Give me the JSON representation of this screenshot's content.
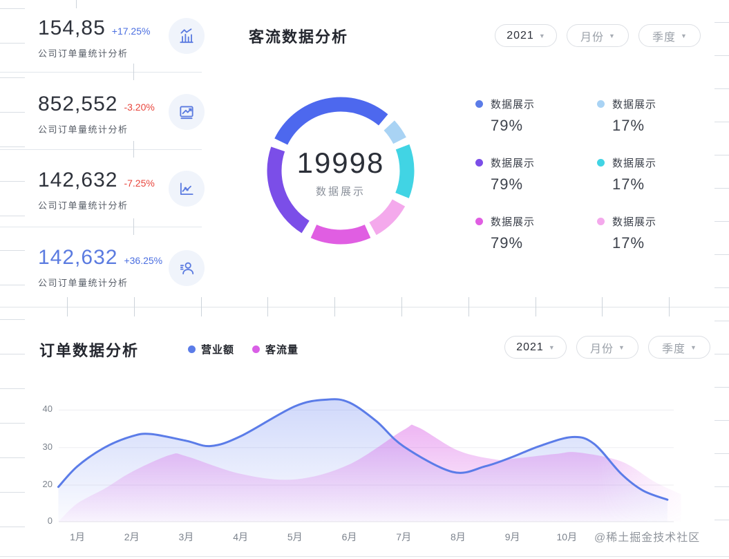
{
  "colors": {
    "accent_blue": "#5b7ce8",
    "positive": "#4a6ee0",
    "negative": "#e8453c",
    "highlight_value": "#5b7be0",
    "muted_text": "#9aa0a8",
    "dark_text": "#2b2f38"
  },
  "stats": {
    "cards": [
      {
        "value": "154,85",
        "delta": "+17.25%",
        "trend": "up",
        "label": "公司订单量统计分析",
        "icon": "bar-chart-icon"
      },
      {
        "value": "852,552",
        "delta": "-3.20%",
        "trend": "down",
        "label": "公司订单量统计分析",
        "icon": "trend-box-icon"
      },
      {
        "value": "142,632",
        "delta": "-7.25%",
        "trend": "down",
        "label": "公司订单量统计分析",
        "icon": "line-chart-icon"
      },
      {
        "value": "142,632",
        "delta": "+36.25%",
        "trend": "up",
        "highlight": true,
        "label": "公司订单量统计分析",
        "icon": "user-stats-icon"
      }
    ]
  },
  "traffic_panel": {
    "title": "客流数据分析",
    "filters": [
      {
        "label": "2021",
        "muted": false
      },
      {
        "label": "月份",
        "muted": true
      },
      {
        "label": "季度",
        "muted": true
      }
    ],
    "donut": {
      "center_value": "19998",
      "center_label": "数据展示",
      "segments": [
        {
          "start": 296,
          "end": 400,
          "color": "#4d68ee"
        },
        {
          "start": 47,
          "end": 63,
          "color": "#a9d3f4"
        },
        {
          "start": 69,
          "end": 112,
          "color": "#41d4e4"
        },
        {
          "start": 119,
          "end": 151,
          "color": "#f4a9ec"
        },
        {
          "start": 156,
          "end": 204,
          "color": "#e05ee2"
        },
        {
          "start": 212,
          "end": 289,
          "color": "#7b4ee8"
        }
      ]
    }
  },
  "orders_panel": {
    "title": "订单数据分析",
    "filters": [
      {
        "label": "2021",
        "muted": false
      },
      {
        "label": "月份",
        "muted": true
      },
      {
        "label": "季度",
        "muted": true
      }
    ]
  },
  "watermark": "@稀土掘金技术社区",
  "chart_data": [
    {
      "type": "pie",
      "title": "客流数据分析",
      "donut": true,
      "center_value": 19998,
      "center_label": "数据展示",
      "slices": [
        {
          "label": "数据展示",
          "value": "79%",
          "color": "#5b7ce8"
        },
        {
          "label": "数据展示",
          "value": "17%",
          "color": "#a9d3f4"
        },
        {
          "label": "数据展示",
          "value": "79%",
          "color": "#7b4ee8"
        },
        {
          "label": "数据展示",
          "value": "17%",
          "color": "#41d4e4"
        },
        {
          "label": "数据展示",
          "value": "79%",
          "color": "#e05ee2"
        },
        {
          "label": "数据展示",
          "value": "17%",
          "color": "#f4a9ec"
        }
      ],
      "legend_position": "right"
    },
    {
      "type": "area",
      "title": "订单数据分析",
      "categories": [
        "1月",
        "2月",
        "3月",
        "4月",
        "5月",
        "6月",
        "7月",
        "8月",
        "9月",
        "10月"
      ],
      "yticks": [
        0,
        20,
        30,
        40
      ],
      "ylim": [
        0,
        45
      ],
      "grid": true,
      "legend_position": "top",
      "series": [
        {
          "name": "营业额",
          "color": "#5b7ce8",
          "points": [
            [
              0.65,
              19
            ],
            [
              1,
              25
            ],
            [
              1.5,
              30
            ],
            [
              2,
              33
            ],
            [
              2.35,
              33.6
            ],
            [
              3,
              31.8
            ],
            [
              3.45,
              30.4
            ],
            [
              4,
              33
            ],
            [
              5,
              41
            ],
            [
              5.6,
              42.8
            ],
            [
              6,
              42
            ],
            [
              6.5,
              37
            ],
            [
              7,
              30.3
            ],
            [
              7.9,
              23.5
            ],
            [
              8.5,
              25
            ],
            [
              9,
              27.5
            ],
            [
              9.5,
              30.4
            ],
            [
              10.1,
              32.8
            ],
            [
              10.5,
              31
            ],
            [
              11,
              23
            ],
            [
              11.4,
              17
            ],
            [
              11.85,
              12
            ]
          ]
        },
        {
          "name": "客流量",
          "color": "#d95fe6",
          "points": [
            [
              0.65,
              0
            ],
            [
              1,
              10
            ],
            [
              1.5,
              18
            ],
            [
              2,
              23.5
            ],
            [
              2.7,
              28
            ],
            [
              3,
              27.7
            ],
            [
              4,
              23
            ],
            [
              5,
              21.5
            ],
            [
              6,
              25.5
            ],
            [
              7,
              34.7
            ],
            [
              7.25,
              35.5
            ],
            [
              8,
              29.2
            ],
            [
              8.7,
              26.8
            ],
            [
              9,
              27
            ],
            [
              9.8,
              28.3
            ],
            [
              10.2,
              28.7
            ],
            [
              11,
              26.3
            ],
            [
              11.6,
              21
            ],
            [
              12.1,
              15
            ]
          ]
        }
      ]
    }
  ]
}
